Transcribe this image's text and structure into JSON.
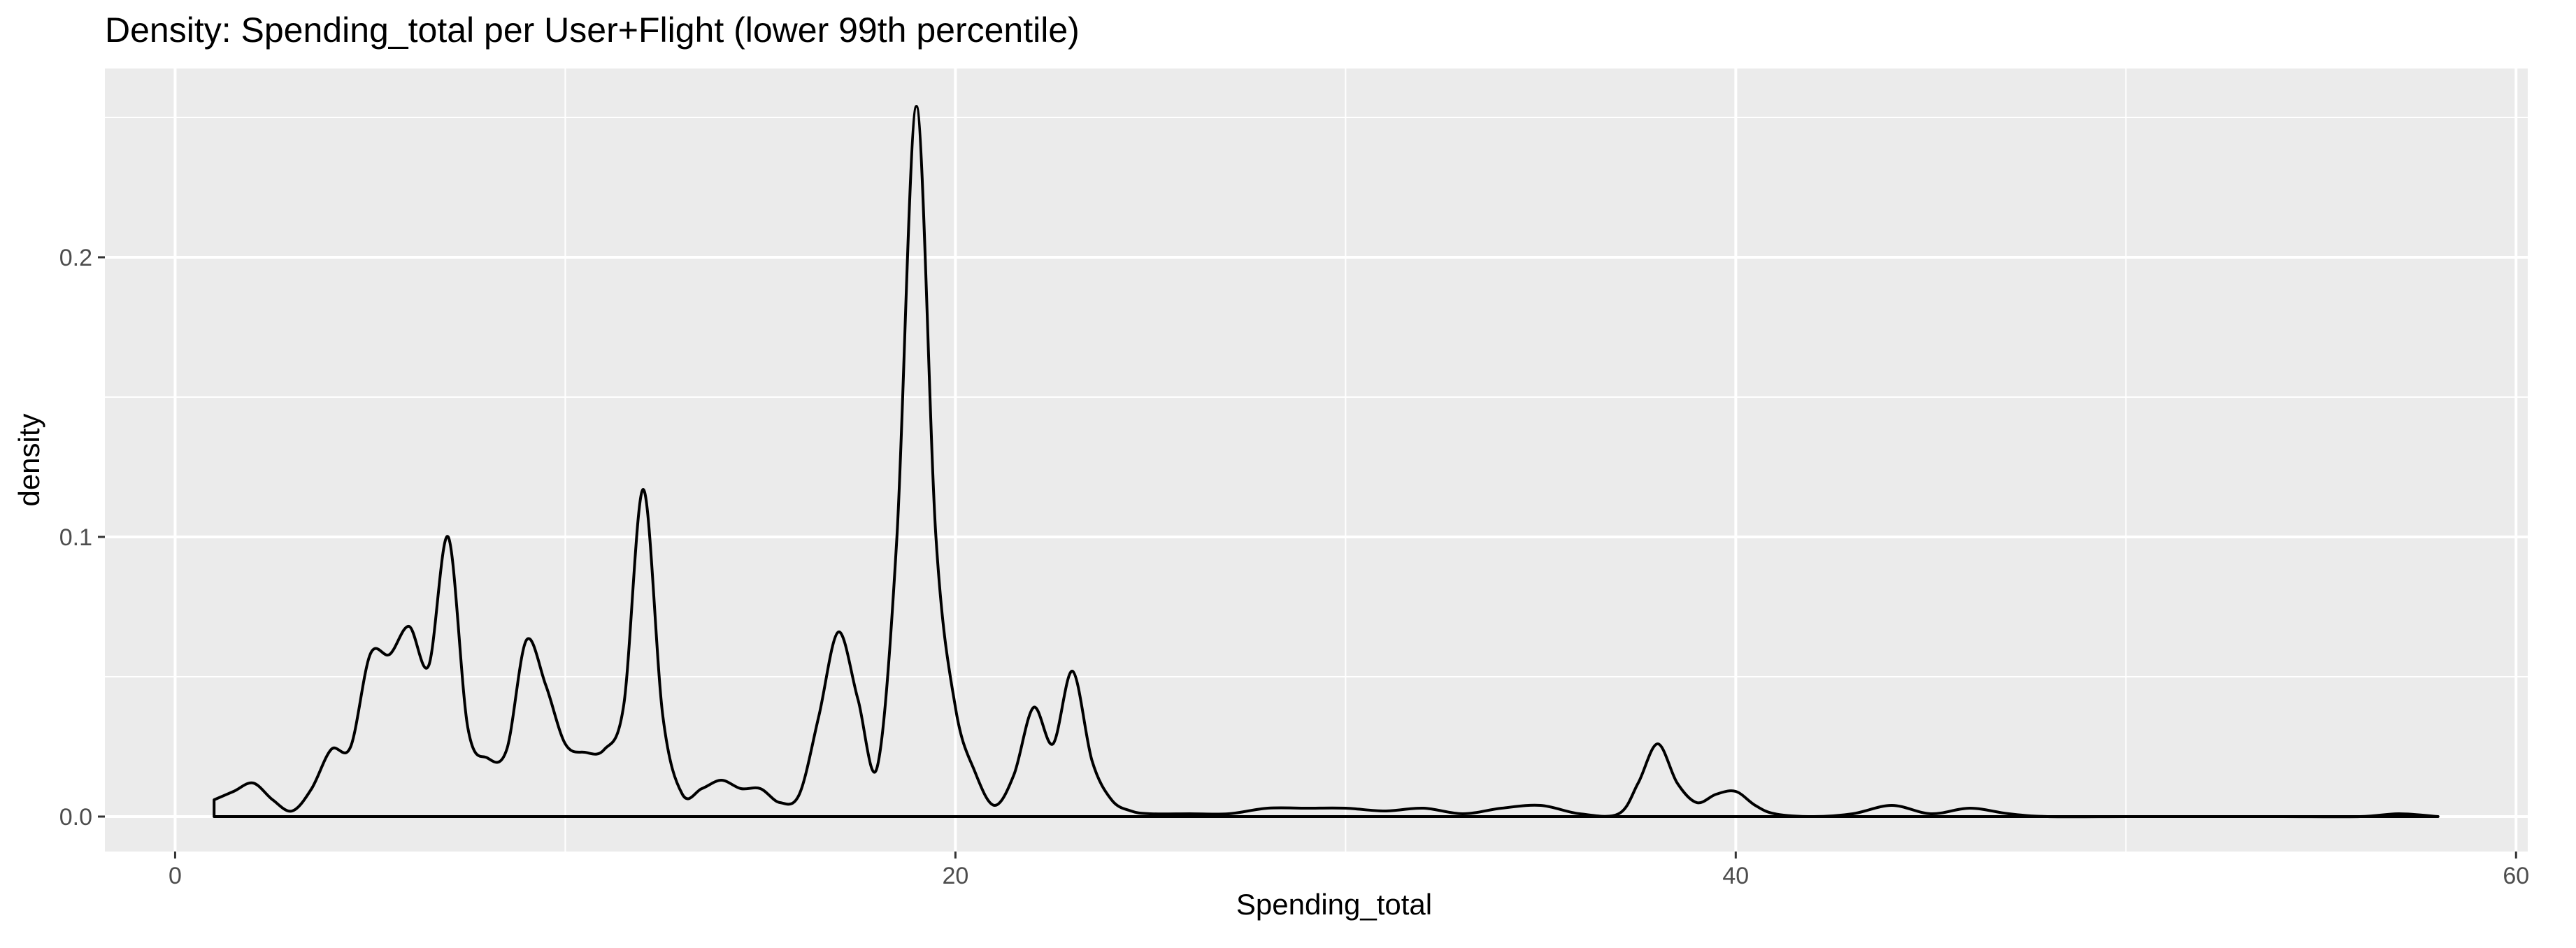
{
  "chart_data": {
    "type": "area",
    "title": "Density: Spending_total per User+Flight (lower 99th percentile)",
    "xlabel": "Spending_total",
    "ylabel": "density",
    "xlim": [
      -1.8,
      60.3
    ],
    "ylim": [
      -0.0125,
      0.2675
    ],
    "x_ticks": [
      0,
      20,
      40,
      60
    ],
    "x_tick_labels": [
      "0",
      "20",
      "40",
      "60"
    ],
    "x_minor_ticks": [
      10,
      30,
      50
    ],
    "y_ticks": [
      0.0,
      0.1,
      0.2
    ],
    "y_tick_labels": [
      "0.0",
      "0.1",
      "0.2"
    ],
    "y_minor_ticks": [
      0.05,
      0.15,
      0.25
    ],
    "grid": true,
    "legend": "none",
    "colors": {
      "panel_background": "#ebebeb",
      "grid_line": "#ffffff",
      "line": "#000000",
      "tick": "#333333",
      "tick_label": "#4d4d4d"
    },
    "series": [
      {
        "x": [
          1,
          1.5,
          2,
          2.5,
          3,
          3.5,
          4,
          4.5,
          5,
          5.5,
          6,
          6.5,
          7,
          7.5,
          8,
          8.5,
          9,
          9.5,
          10,
          10.5,
          11,
          11.5,
          12,
          12.5,
          13,
          13.5,
          14,
          14.5,
          15,
          15.5,
          16,
          16.5,
          17,
          17.5,
          18,
          18.5,
          19,
          19.5,
          20,
          20.5,
          21,
          21.5,
          22,
          22.5,
          23,
          23.5,
          24,
          24.5,
          25,
          26,
          27,
          28,
          29,
          30,
          31,
          32,
          33,
          34,
          35,
          36,
          37,
          37.5,
          38,
          38.5,
          39,
          39.5,
          40,
          40.5,
          41,
          42,
          43,
          44,
          45,
          46,
          47,
          48,
          50,
          52,
          54,
          56,
          57,
          58
        ],
        "y": [
          0.006,
          0.009,
          0.012,
          0.006,
          0.002,
          0.01,
          0.024,
          0.025,
          0.058,
          0.058,
          0.068,
          0.054,
          0.1,
          0.032,
          0.021,
          0.024,
          0.063,
          0.047,
          0.026,
          0.023,
          0.024,
          0.04,
          0.117,
          0.036,
          0.008,
          0.01,
          0.013,
          0.01,
          0.01,
          0.005,
          0.008,
          0.036,
          0.066,
          0.042,
          0.018,
          0.1,
          0.254,
          0.1,
          0.039,
          0.016,
          0.004,
          0.015,
          0.039,
          0.026,
          0.052,
          0.02,
          0.006,
          0.002,
          0.001,
          0.001,
          0.001,
          0.003,
          0.003,
          0.003,
          0.002,
          0.003,
          0.001,
          0.003,
          0.004,
          0.001,
          0.001,
          0.012,
          0.026,
          0.012,
          0.005,
          0.008,
          0.009,
          0.004,
          0.001,
          0.0,
          0.001,
          0.004,
          0.001,
          0.003,
          0.001,
          0.0,
          0.0,
          0.0,
          0.0,
          0.0,
          0.001,
          0.0
        ]
      }
    ]
  }
}
